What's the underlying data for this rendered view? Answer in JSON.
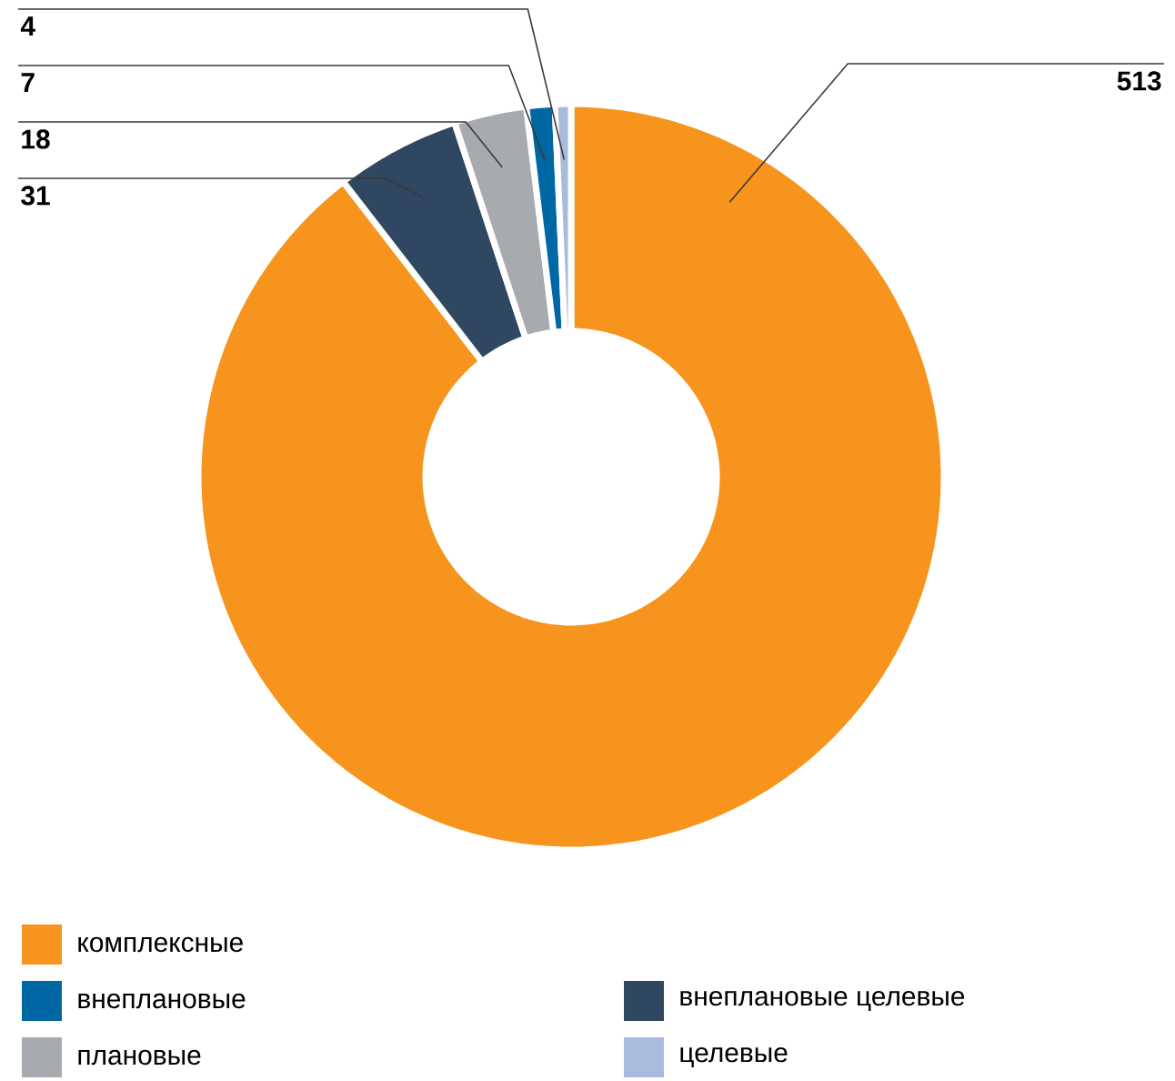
{
  "chart_data": {
    "type": "donut",
    "categories": [
      "комплексные",
      "внеплановые целевые",
      "плановые",
      "внеплановые",
      "целевые"
    ],
    "values": [
      513,
      31,
      18,
      7,
      4
    ],
    "colors": [
      "#f7941d",
      "#2f4760",
      "#a7abb0",
      "#0067a5",
      "#a9bbdc"
    ],
    "data_labels": true,
    "legend": "bottom"
  }
}
